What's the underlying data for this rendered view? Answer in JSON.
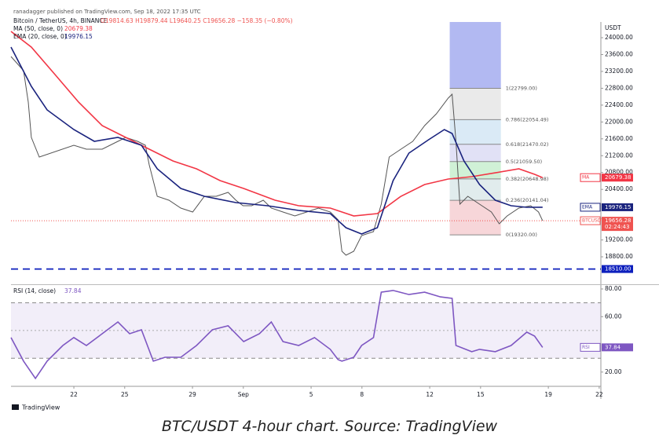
{
  "header": {
    "published": "ranadagger published on TradingView.com, Sep 18, 2022 17:35 UTC",
    "ohlc": "O19814.63 H19879.44 L19640.25 C19656.28 −158.35 (−0.80%)",
    "currency": "USDT",
    "logo": "TradingView"
  },
  "caption": "BTC/USDT 4-hour chart. Source: TradingView",
  "chart_data": [
    {
      "type": "line",
      "xlim": [
        18.29,
        53.1
      ],
      "ylim": [
        18186,
        24373
      ],
      "grid": false,
      "xticks": [
        {
          "value": 22,
          "label": "22"
        },
        {
          "value": 25,
          "label": "25"
        },
        {
          "value": 29,
          "label": "29"
        },
        {
          "value": 32,
          "label": "Sep"
        },
        {
          "value": 36,
          "label": "5"
        },
        {
          "value": 39,
          "label": "8"
        },
        {
          "value": 43,
          "label": "12"
        },
        {
          "value": 46,
          "label": "15"
        },
        {
          "value": 50,
          "label": "19"
        },
        {
          "value": 53,
          "label": "22"
        }
      ],
      "yticks": [
        {
          "value": 18800,
          "label": "18800.00"
        },
        {
          "value": 19200,
          "label": "19200.00"
        },
        {
          "value": 20400,
          "label": "20400.00"
        },
        {
          "value": 20800,
          "label": "20800.00"
        },
        {
          "value": 21200,
          "label": "21200.00"
        },
        {
          "value": 21600,
          "label": "21600.00"
        },
        {
          "value": 22000,
          "label": "22000.00"
        },
        {
          "value": 22400,
          "label": "22400.00"
        },
        {
          "value": 22800,
          "label": "22800.00"
        },
        {
          "value": 23200,
          "label": "23200.00"
        },
        {
          "value": 23600,
          "label": "23600.00"
        },
        {
          "value": 24000,
          "label": "24000.00"
        }
      ],
      "series": [
        {
          "name": "Bitcoin / TetherUS, 4h, BINANCE",
          "color": "#555555",
          "badge": "BTCUSDT",
          "badge_value": "19656.28",
          "badge_timer": "02:24:43",
          "badge_color": "#ef5350",
          "x": [
            18.29,
            19.03,
            19.31,
            19.49,
            19.96,
            22,
            22.74,
            23.67,
            24.6,
            25.06,
            25.76,
            26.22,
            26.45,
            26.92,
            27.61,
            28.31,
            29.01,
            29.7,
            30.4,
            31.1,
            31.56,
            31.98,
            32.49,
            33.18,
            33.65,
            34.34,
            35.04,
            35.74,
            36.43,
            37.13,
            37.59,
            37.82,
            38.06,
            38.52,
            38.98,
            39.68,
            40.14,
            40.61,
            41.3,
            42,
            42.7,
            43.39,
            44.09,
            44.32,
            44.55,
            44.78,
            45.25,
            45.94,
            46.64,
            47.1,
            47.57,
            48.26,
            48.96,
            49.42,
            49.66
          ],
          "values": [
            23553,
            23217,
            22472,
            21633,
            21167,
            21447,
            21354,
            21354,
            21540,
            21633,
            21540,
            21447,
            20981,
            20236,
            20142,
            19956,
            19863,
            20236,
            20236,
            20329,
            20142,
            20012,
            20012,
            20142,
            19956,
            19863,
            19770,
            19863,
            19956,
            19863,
            19677,
            18931,
            18838,
            18931,
            19304,
            19397,
            20049,
            21167,
            21354,
            21540,
            21913,
            22192,
            22565,
            22658,
            21540,
            20049,
            20236,
            20049,
            19863,
            19583,
            19770,
            19956,
            20012,
            19863,
            19656.28
          ]
        },
        {
          "name": "MA (50, close, 0)",
          "legend_value": "20679.38",
          "color": "#f23645",
          "badge": "MA",
          "badge_value": "20679.38",
          "badge_color": "#f23645",
          "x": [
            18.29,
            19.49,
            20.89,
            22.28,
            23.67,
            25.06,
            26.45,
            27.85,
            29.24,
            30.63,
            32.02,
            33.88,
            35.27,
            37.13,
            38.52,
            39.91,
            41.3,
            42.7,
            44.09,
            45.48,
            46.87,
            48.26,
            49.19,
            49.66
          ],
          "values": [
            24149,
            23776,
            23124,
            22471,
            21913,
            21633,
            21354,
            21074,
            20888,
            20608,
            20422,
            20142,
            20012,
            19956,
            19770,
            19826,
            20236,
            20515,
            20645,
            20701,
            20794,
            20888,
            20757,
            20679.38
          ]
        },
        {
          "name": "EMA (20, close, 0)",
          "legend_value": "19976.15",
          "color": "#1a237e",
          "badge": "EMA",
          "badge_value": "19976.15",
          "badge_color": "#1a237e",
          "x": [
            18.29,
            19.49,
            20.42,
            22,
            23.21,
            24.6,
            25.99,
            26.92,
            28.31,
            29.7,
            31.56,
            33.42,
            35.27,
            37.13,
            38.06,
            38.98,
            39.91,
            40.84,
            41.77,
            42.93,
            43.86,
            44.32,
            45.02,
            45.94,
            46.87,
            47.8,
            48.73,
            49.66
          ],
          "values": [
            23776,
            22845,
            22285,
            21820,
            21540,
            21633,
            21447,
            20888,
            20422,
            20236,
            20086,
            20012,
            19900,
            19826,
            19490,
            19341,
            19490,
            20608,
            21260,
            21577,
            21820,
            21726,
            21074,
            20515,
            20142,
            20012,
            19975,
            19976.15
          ]
        }
      ],
      "hline": {
        "value": 18510,
        "label": "18510.00",
        "color": "#0d1fbd"
      },
      "fib": {
        "x": [
          44.18,
          47.2
        ],
        "top_color": "#9fa8ef",
        "levels": [
          {
            "value": 22799,
            "label": "1(22799.00)"
          },
          {
            "value": 22054.49,
            "label": "0.786(22054.49)"
          },
          {
            "value": 21470.02,
            "label": "0.618(21470.02)"
          },
          {
            "value": 21059.5,
            "label": "0.5(21059.50)"
          },
          {
            "value": 20648.98,
            "label": "0.382(20648.98)"
          },
          {
            "value": 20141.04,
            "label": "0.236(20141.04)"
          },
          {
            "value": 19320,
            "label": "0(19320.00)"
          }
        ],
        "colors": [
          "#e6e6e6",
          "#d3e6f5",
          "#dcdcf5",
          "#c8efcf",
          "#dce9ea",
          "#f6cfd2"
        ]
      }
    },
    {
      "type": "line",
      "xlim": [
        18.29,
        53.1
      ],
      "ylim": [
        9.7,
        81.7
      ],
      "yticks": [
        {
          "value": 20,
          "label": "20.00"
        },
        {
          "value": 60,
          "label": "60.00"
        },
        {
          "value": 80,
          "label": "80.00"
        }
      ],
      "band": [
        30,
        70
      ],
      "midline": 50,
      "band_color": "#7e57c2",
      "series": [
        {
          "name": "RSI (14, close)",
          "legend_value": "37.84",
          "color": "#7e57c2",
          "badge": "RSI",
          "badge_value": "37.84",
          "badge_color": "#7e57c2",
          "x": [
            18.29,
            19.03,
            19.73,
            20.42,
            21.35,
            22,
            22.74,
            23.67,
            24.6,
            25.29,
            25.99,
            26.69,
            27.38,
            28.31,
            29.24,
            30.17,
            31.1,
            32.02,
            32.95,
            33.65,
            34.34,
            35.27,
            36.2,
            37.13,
            37.59,
            37.82,
            38.52,
            38.98,
            39.68,
            40.14,
            40.84,
            41.77,
            42.7,
            43.63,
            44.32,
            44.55,
            45.48,
            45.94,
            46.87,
            47.8,
            48.73,
            49.19,
            49.66
          ],
          "values": [
            44.9,
            27.9,
            15.4,
            27.9,
            39.2,
            44.9,
            39.2,
            47.7,
            56.2,
            47.7,
            50.5,
            27.9,
            30.7,
            30.7,
            39.2,
            50.5,
            53.4,
            42,
            47.7,
            56.2,
            42,
            39.2,
            44.9,
            36.4,
            29,
            27.9,
            30.7,
            39.2,
            44.9,
            77.7,
            78.9,
            76,
            77.7,
            74.3,
            73.2,
            39.2,
            34.7,
            36.4,
            34.7,
            39.2,
            48.8,
            46,
            37.84
          ]
        }
      ]
    }
  ]
}
